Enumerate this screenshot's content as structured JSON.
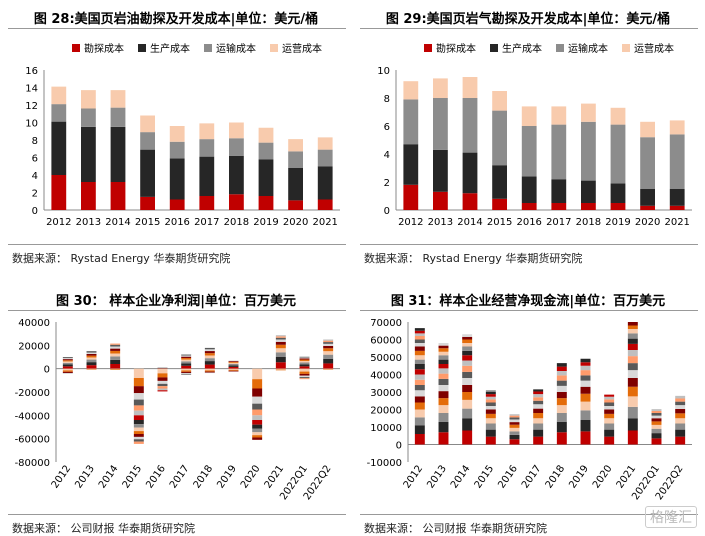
{
  "panels": [
    {
      "title": "图 28:美国页岩油勘探及开发成本|单位：美元/桶",
      "source": "数据来源： Rystad Energy 华泰期货研究院"
    },
    {
      "title": "图 29:美国页岩气勘探及开发成本|单位：美元/桶",
      "source": "数据来源： Rystad Energy 华泰期货研究院"
    },
    {
      "title": "图 30： 样本企业净利润|单位：百万美元",
      "source": "数据来源： 公司财报 华泰期货研究院"
    },
    {
      "title": "图 31：样本企业经营净现金流|单位：百万美元",
      "source": "数据来源： 公司财报 华泰期货研究院"
    }
  ],
  "watermark": "格隆汇",
  "chart_data": [
    {
      "type": "bar",
      "stacked": true,
      "categories": [
        "2012",
        "2013",
        "2014",
        "2015",
        "2016",
        "2017",
        "2018",
        "2019",
        "2020",
        "2021"
      ],
      "ylim": [
        0,
        16
      ],
      "yticks": [
        0,
        2,
        4,
        6,
        8,
        10,
        12,
        14,
        16
      ],
      "legend_position": "top",
      "series": [
        {
          "name": "勘探成本",
          "color": "#c00000",
          "values": [
            4.0,
            3.2,
            3.2,
            1.5,
            1.2,
            1.6,
            1.8,
            1.6,
            1.1,
            1.2
          ]
        },
        {
          "name": "生产成本",
          "color": "#262626",
          "values": [
            6.1,
            6.3,
            6.3,
            5.4,
            4.7,
            4.5,
            4.4,
            4.2,
            3.7,
            3.8
          ]
        },
        {
          "name": "运输成本",
          "color": "#8c8c8c",
          "values": [
            2.0,
            2.1,
            2.2,
            2.0,
            1.9,
            2.0,
            2.0,
            1.9,
            1.9,
            1.9
          ]
        },
        {
          "name": "运营成本",
          "color": "#f8cbad",
          "values": [
            2.0,
            2.1,
            2.0,
            1.9,
            1.8,
            1.8,
            1.8,
            1.7,
            1.4,
            1.4
          ]
        }
      ]
    },
    {
      "type": "bar",
      "stacked": true,
      "categories": [
        "2012",
        "2013",
        "2014",
        "2015",
        "2016",
        "2017",
        "2018",
        "2019",
        "2020",
        "2021"
      ],
      "ylim": [
        0,
        10
      ],
      "yticks": [
        0,
        2,
        4,
        6,
        8,
        10
      ],
      "legend_position": "top",
      "series": [
        {
          "name": "勘探成本",
          "color": "#c00000",
          "values": [
            1.8,
            1.3,
            1.2,
            0.8,
            0.5,
            0.5,
            0.5,
            0.5,
            0.3,
            0.3
          ]
        },
        {
          "name": "生产成本",
          "color": "#262626",
          "values": [
            2.9,
            3.0,
            2.9,
            2.4,
            1.9,
            1.7,
            1.6,
            1.4,
            1.2,
            1.2
          ]
        },
        {
          "name": "运输成本",
          "color": "#8c8c8c",
          "values": [
            3.2,
            3.7,
            3.9,
            3.9,
            3.6,
            3.9,
            4.2,
            4.2,
            3.7,
            3.9
          ]
        },
        {
          "name": "运营成本",
          "color": "#f8cbad",
          "values": [
            1.3,
            1.4,
            1.5,
            1.4,
            1.4,
            1.3,
            1.3,
            1.2,
            1.1,
            1.0
          ]
        }
      ]
    },
    {
      "type": "bar",
      "stacked": true,
      "categories": [
        "2012",
        "2013",
        "2014",
        "2015",
        "2016",
        "2017",
        "2018",
        "2019",
        "2020",
        "2021",
        "2022Q1",
        "2022Q2"
      ],
      "ylim": [
        -80000,
        40000
      ],
      "yticks": [
        -80000,
        -60000,
        -40000,
        -20000,
        0,
        20000,
        40000
      ],
      "segment_palette": [
        "#c00000",
        "#262626",
        "#8c8c8c",
        "#f8cbad",
        "#e46c0a",
        "#7f0000",
        "#d9d9d9",
        "#595959",
        "#ff9b6b",
        "#bfbfbf"
      ],
      "positive_segments": [
        [
          2000,
          1600,
          1400,
          1200,
          1000,
          1000,
          900,
          800
        ],
        [
          3000,
          2600,
          2200,
          1800,
          1600,
          1400,
          1200,
          1200
        ],
        [
          4000,
          3500,
          3000,
          2500,
          2200,
          2000,
          1800,
          1500,
          1000
        ],
        [],
        [
          400,
          300,
          300
        ],
        [
          2500,
          2000,
          1800,
          1500,
          1300,
          1200,
          1000,
          800
        ],
        [
          3500,
          3000,
          2500,
          2300,
          2000,
          1800,
          1500,
          1200
        ],
        [
          1500,
          1300,
          1200,
          1000,
          800,
          700,
          500
        ],
        [],
        [
          5500,
          4500,
          4000,
          3500,
          3000,
          2500,
          2000,
          1500,
          1200,
          1000
        ],
        [
          2000,
          1800,
          1500,
          1300,
          1200,
          1000,
          800,
          600
        ],
        [
          4500,
          4000,
          3500,
          3000,
          2500,
          2000,
          1800,
          1500,
          1200,
          1000
        ]
      ],
      "negative_segments": [
        [
          -1500,
          -1200,
          -1000,
          -800
        ],
        [
          -500,
          -400
        ],
        [
          -600,
          -500
        ],
        [
          -8000,
          -7000,
          -6000,
          -5500,
          -5000,
          -4500,
          -4000,
          -4000,
          -3500,
          -3000,
          -3000,
          -2500,
          -2500,
          -2000,
          -2000,
          -2000
        ],
        [
          -4000,
          -3500,
          -3000,
          -2500,
          -2000,
          -2000,
          -1500,
          -1000
        ],
        [
          -1500,
          -1200,
          -1000,
          -800,
          -600
        ],
        [
          -1500,
          -1000,
          -800,
          -500
        ],
        [
          -1000,
          -800,
          -600
        ],
        [
          -9000,
          -8000,
          -7000,
          -6000,
          -5000,
          -5000,
          -4000,
          -4000,
          -3500,
          -3000,
          -2500,
          -2000,
          -2000
        ],
        [
          -800,
          -600
        ],
        [
          -2500,
          -2000,
          -1500,
          -1200,
          -1000,
          -800
        ],
        [
          -500,
          -400
        ]
      ]
    },
    {
      "type": "bar",
      "stacked": true,
      "categories": [
        "2012",
        "2013",
        "2014",
        "2015",
        "2016",
        "2017",
        "2018",
        "2019",
        "2020",
        "2021",
        "2022Q1",
        "2022Q2"
      ],
      "ylim": [
        -10000,
        70000
      ],
      "yticks": [
        -10000,
        0,
        10000,
        20000,
        30000,
        40000,
        50000,
        60000,
        70000
      ],
      "segment_palette": [
        "#c00000",
        "#262626",
        "#8c8c8c",
        "#f8cbad",
        "#e46c0a",
        "#7f0000",
        "#d9d9d9",
        "#595959",
        "#ff9b6b",
        "#bfbfbf"
      ],
      "positive_segments": [
        [
          6000,
          5000,
          4500,
          4500,
          4000,
          3500,
          3500,
          3000,
          3000,
          3000,
          3000,
          3000,
          2500,
          2500,
          2500,
          2500,
          2000,
          2000,
          2000,
          1500,
          1500,
          1500
        ],
        [
          7000,
          6000,
          5000,
          4500,
          4000,
          4000,
          3500,
          3500,
          3000,
          3000,
          2500,
          2500,
          2500,
          2000,
          2000,
          1500,
          1500
        ],
        [
          8000,
          7000,
          5500,
          5000,
          4500,
          4000,
          4000,
          3500,
          3500,
          3000,
          3000,
          2500,
          2500,
          2000,
          2000,
          1500,
          1500
        ],
        [
          4500,
          4000,
          3500,
          3000,
          2500,
          2500,
          2000,
          2000,
          1800,
          1500,
          1500,
          1200,
          1000
        ],
        [
          3000,
          2500,
          2000,
          2000,
          1800,
          1500,
          1500,
          1200,
          1000,
          800
        ],
        [
          4500,
          4000,
          3500,
          3000,
          3000,
          2500,
          2500,
          2000,
          2000,
          1800,
          1500,
          1200
        ],
        [
          7000,
          6000,
          5000,
          4500,
          4000,
          3500,
          3500,
          3000,
          3000,
          2500,
          2500,
          2000
        ],
        [
          7500,
          6500,
          5500,
          5000,
          4500,
          4000,
          3500,
          3000,
          3000,
          2500,
          2000,
          2000
        ],
        [
          4500,
          4000,
          3500,
          3000,
          2500,
          2500,
          2000,
          2000,
          1800,
          1500,
          1200
        ],
        [
          8000,
          7000,
          6500,
          6000,
          5500,
          5000,
          4500,
          4000,
          4000,
          3500,
          3500,
          3000,
          3000,
          2500,
          2000,
          2000
        ],
        [
          3500,
          3000,
          2500,
          2200,
          2000,
          1800,
          1500,
          1500,
          1200,
          1000
        ],
        [
          4500,
          4000,
          3500,
          3000,
          2800,
          2500,
          2200,
          2000,
          1800,
          1500
        ]
      ],
      "negative_segments": [
        [],
        [],
        [],
        [],
        [],
        [],
        [],
        [],
        [],
        [],
        [],
        []
      ]
    }
  ]
}
